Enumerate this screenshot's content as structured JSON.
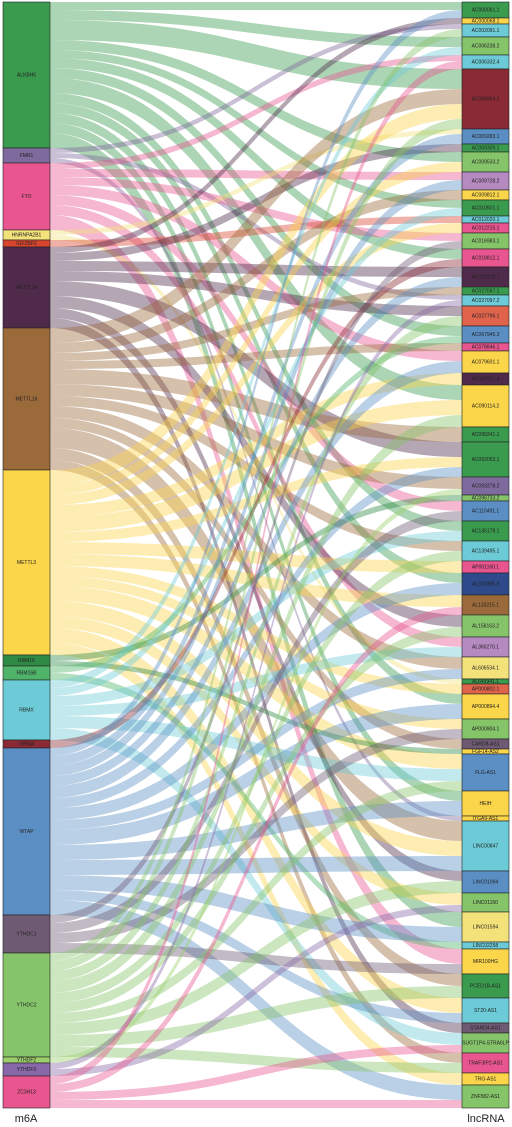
{
  "chart_data": {
    "type": "sankey",
    "left_axis_label": "m6A",
    "right_axis_label": "lncRNA",
    "sources": [
      {
        "name": "ALKBH5",
        "color": "#3a9a4e"
      },
      {
        "name": "FMR1",
        "color": "#7f6a9e"
      },
      {
        "name": "FTO",
        "color": "#e8558f"
      },
      {
        "name": "HNRNPA2B1",
        "color": "#f3e27a"
      },
      {
        "name": "IGF2BP2",
        "color": "#d8452f"
      },
      {
        "name": "METTL14",
        "color": "#4f2a4a"
      },
      {
        "name": "METTL16",
        "color": "#9b6a3a"
      },
      {
        "name": "METTL3",
        "color": "#fbd54a"
      },
      {
        "name": "RBM15",
        "color": "#2f8a46"
      },
      {
        "name": "RBM15B",
        "color": "#4fb46a"
      },
      {
        "name": "RBMX",
        "color": "#6ccbd6"
      },
      {
        "name": "VIRMA",
        "color": "#8a2a34"
      },
      {
        "name": "WTAP",
        "color": "#5b8fc4"
      },
      {
        "name": "YTHDC1",
        "color": "#6e5a73"
      },
      {
        "name": "YTHDC2",
        "color": "#86c46a"
      },
      {
        "name": "YTHDF2",
        "color": "#9ccf6a"
      },
      {
        "name": "YTHDF3",
        "color": "#8868a8"
      },
      {
        "name": "ZC3H13",
        "color": "#e8558f"
      }
    ],
    "targets": [
      {
        "name": "AC000061.1",
        "color": "#3a9a4e"
      },
      {
        "name": "AC000068.1",
        "color": "#fbd54a"
      },
      {
        "name": "AC002091.1",
        "color": "#6ccbd6"
      },
      {
        "name": "AC006238.2",
        "color": "#86c46a"
      },
      {
        "name": "AC006332.4",
        "color": "#6ccbd6"
      },
      {
        "name": "AC008264.2",
        "color": "#8a2a34"
      },
      {
        "name": "AC009283.1",
        "color": "#5b8fc4"
      },
      {
        "name": "AC009309.1",
        "color": "#3a9a4e"
      },
      {
        "name": "AC009533.2",
        "color": "#86c46a"
      },
      {
        "name": "AC009728.2",
        "color": "#b58ac0"
      },
      {
        "name": "AC009812.1",
        "color": "#fbd54a"
      },
      {
        "name": "AC010601.1",
        "color": "#3a9a4e"
      },
      {
        "name": "AC012020.1",
        "color": "#6ccbd6"
      },
      {
        "name": "AC012215.1",
        "color": "#e8558f"
      },
      {
        "name": "AC016983.1",
        "color": "#86c46a"
      },
      {
        "name": "AC018812.1",
        "color": "#e8558f"
      },
      {
        "name": "AC021218.1",
        "color": "#4f2a4a"
      },
      {
        "name": "AC027097.1",
        "color": "#3a9a4e"
      },
      {
        "name": "AC027097.2",
        "color": "#6ccbd6"
      },
      {
        "name": "AC027796.1",
        "color": "#e0634c"
      },
      {
        "name": "AC067945.3",
        "color": "#5b8fc4"
      },
      {
        "name": "AC078846.1",
        "color": "#e8558f"
      },
      {
        "name": "AC079601.1",
        "color": "#fbd54a"
      },
      {
        "name": "AC087501.4",
        "color": "#4f2a4a"
      },
      {
        "name": "AC090114.2",
        "color": "#fbd54a"
      },
      {
        "name": "AC090241.1",
        "color": "#3a9a4e"
      },
      {
        "name": "AC092053.1",
        "color": "#3a9a4e"
      },
      {
        "name": "AC093278.2",
        "color": "#7f6a9e"
      },
      {
        "name": "AC096733.2",
        "color": "#86c46a"
      },
      {
        "name": "AC110491.1",
        "color": "#5b8fc4"
      },
      {
        "name": "AC135178.1",
        "color": "#3a9a4e"
      },
      {
        "name": "AC139495.1",
        "color": "#6ccbd6"
      },
      {
        "name": "AP001160.1",
        "color": "#e8558f"
      },
      {
        "name": "AL031985.3",
        "color": "#2e4a8a"
      },
      {
        "name": "AL133215.1",
        "color": "#9b6a3a"
      },
      {
        "name": "AL158163.2",
        "color": "#86c46a"
      },
      {
        "name": "AL360270.1",
        "color": "#b58ac0"
      },
      {
        "name": "AL606534.1",
        "color": "#f3e27a"
      },
      {
        "name": "AL645941.1",
        "color": "#3a9a4e"
      },
      {
        "name": "AP000802.1",
        "color": "#e0634c"
      },
      {
        "name": "AP000894.4",
        "color": "#fbd54a"
      },
      {
        "name": "AP000904.1",
        "color": "#86c46a"
      },
      {
        "name": "CARD8-AS1",
        "color": "#6e5a73"
      },
      {
        "name": "FGF14-AS2",
        "color": "#fbd54a"
      },
      {
        "name": "FLG-AS1",
        "color": "#5b8fc4"
      },
      {
        "name": "HEIH",
        "color": "#fbd54a"
      },
      {
        "name": "ITGA9-AS1",
        "color": "#fbd54a"
      },
      {
        "name": "LINC00847",
        "color": "#6ccbd6"
      },
      {
        "name": "LINC01094",
        "color": "#5b8fc4"
      },
      {
        "name": "LINC01150",
        "color": "#86c46a"
      },
      {
        "name": "LINC01594",
        "color": "#f3e27a"
      },
      {
        "name": "LINC02258",
        "color": "#6ccbd6"
      },
      {
        "name": "MIR100HG",
        "color": "#fbd54a"
      },
      {
        "name": "PCED1B-AS1",
        "color": "#3a9a4e"
      },
      {
        "name": "ST20-AS1",
        "color": "#6ccbd6"
      },
      {
        "name": "STARD4-AS1",
        "color": "#6e5a73"
      },
      {
        "name": "SUGT1P4-STRA6LP",
        "color": "#86c46a"
      },
      {
        "name": "TRAF3IP2-AS1",
        "color": "#e8558f"
      },
      {
        "name": "TRG-AS1",
        "color": "#fbd54a"
      },
      {
        "name": "ZNF582-AS1",
        "color": "#86c46a"
      }
    ],
    "links": [
      [
        0,
        0,
        8
      ],
      [
        0,
        3,
        10
      ],
      [
        0,
        5,
        20
      ],
      [
        0,
        8,
        10
      ],
      [
        0,
        11,
        8
      ],
      [
        0,
        15,
        10
      ],
      [
        0,
        20,
        10
      ],
      [
        0,
        24,
        15
      ],
      [
        0,
        30,
        10
      ],
      [
        0,
        33,
        10
      ],
      [
        0,
        40,
        10
      ],
      [
        0,
        45,
        10
      ],
      [
        0,
        50,
        15
      ],
      [
        1,
        2,
        5
      ],
      [
        1,
        18,
        5
      ],
      [
        1,
        46,
        5
      ],
      [
        2,
        4,
        6
      ],
      [
        2,
        9,
        8
      ],
      [
        2,
        14,
        8
      ],
      [
        2,
        22,
        10
      ],
      [
        2,
        29,
        10
      ],
      [
        2,
        36,
        10
      ],
      [
        2,
        52,
        15
      ],
      [
        3,
        6,
        5
      ],
      [
        3,
        38,
        5
      ],
      [
        4,
        12,
        7
      ],
      [
        5,
        1,
        6
      ],
      [
        5,
        7,
        8
      ],
      [
        5,
        16,
        10
      ],
      [
        5,
        19,
        10
      ],
      [
        5,
        26,
        15
      ],
      [
        5,
        35,
        12
      ],
      [
        5,
        48,
        10
      ],
      [
        5,
        55,
        10
      ],
      [
        6,
        5,
        15
      ],
      [
        6,
        10,
        10
      ],
      [
        6,
        17,
        8
      ],
      [
        6,
        21,
        8
      ],
      [
        6,
        25,
        15
      ],
      [
        6,
        27,
        12
      ],
      [
        6,
        31,
        10
      ],
      [
        6,
        37,
        12
      ],
      [
        6,
        42,
        10
      ],
      [
        6,
        47,
        20
      ],
      [
        6,
        53,
        12
      ],
      [
        6,
        57,
        10
      ],
      [
        7,
        5,
        15
      ],
      [
        7,
        8,
        10
      ],
      [
        7,
        13,
        10
      ],
      [
        7,
        23,
        12
      ],
      [
        7,
        24,
        15
      ],
      [
        7,
        26,
        10
      ],
      [
        7,
        32,
        12
      ],
      [
        7,
        34,
        12
      ],
      [
        7,
        39,
        10
      ],
      [
        7,
        41,
        10
      ],
      [
        7,
        44,
        15
      ],
      [
        7,
        47,
        15
      ],
      [
        7,
        49,
        12
      ],
      [
        7,
        54,
        15
      ],
      [
        7,
        58,
        12
      ],
      [
        8,
        28,
        6
      ],
      [
        8,
        43,
        5
      ],
      [
        9,
        20,
        7
      ],
      [
        9,
        51,
        7
      ],
      [
        10,
        3,
        8
      ],
      [
        10,
        11,
        8
      ],
      [
        10,
        30,
        10
      ],
      [
        10,
        36,
        10
      ],
      [
        10,
        44,
        12
      ],
      [
        10,
        56,
        12
      ],
      [
        11,
        15,
        8
      ],
      [
        12,
        0,
        8
      ],
      [
        12,
        6,
        10
      ],
      [
        12,
        9,
        10
      ],
      [
        12,
        16,
        10
      ],
      [
        12,
        22,
        12
      ],
      [
        12,
        26,
        10
      ],
      [
        12,
        33,
        12
      ],
      [
        12,
        37,
        10
      ],
      [
        12,
        40,
        15
      ],
      [
        12,
        45,
        15
      ],
      [
        12,
        47,
        15
      ],
      [
        12,
        50,
        15
      ],
      [
        12,
        54,
        10
      ],
      [
        12,
        59,
        15
      ],
      [
        13,
        14,
        8
      ],
      [
        13,
        29,
        10
      ],
      [
        13,
        41,
        10
      ],
      [
        13,
        52,
        10
      ],
      [
        14,
        2,
        8
      ],
      [
        14,
        5,
        10
      ],
      [
        14,
        19,
        10
      ],
      [
        14,
        24,
        12
      ],
      [
        14,
        31,
        10
      ],
      [
        14,
        35,
        10
      ],
      [
        14,
        44,
        10
      ],
      [
        14,
        48,
        12
      ],
      [
        14,
        53,
        12
      ],
      [
        14,
        57,
        10
      ],
      [
        15,
        27,
        6
      ],
      [
        16,
        18,
        6
      ],
      [
        16,
        49,
        7
      ],
      [
        17,
        4,
        8
      ],
      [
        17,
        34,
        8
      ],
      [
        17,
        56,
        8
      ],
      [
        17,
        59,
        8
      ]
    ]
  }
}
